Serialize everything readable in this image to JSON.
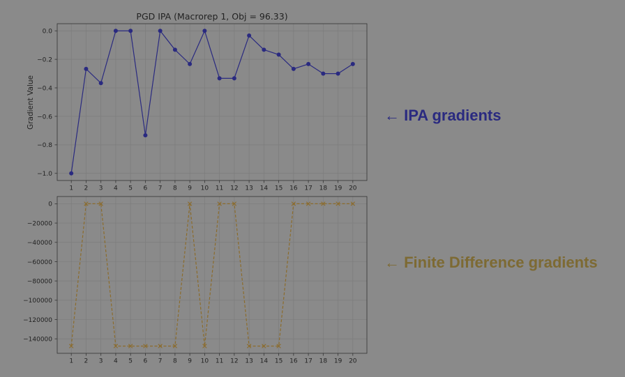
{
  "colors": {
    "background": "#8a8a8a",
    "plot_bg": "#8a8a8a",
    "grid": "#7c7c7c",
    "ipa": "#2a2a80",
    "fd": "#8c6c2c",
    "annot_ipa": "#2a2a80",
    "annot_fd": "#7d6a33"
  },
  "annotations": {
    "ipa": "← IPA gradients",
    "fd": "← Finite Difference gradients"
  },
  "chart_data": [
    {
      "type": "line",
      "title": "PGD IPA (Macrorep 1, Obj = 96.33)",
      "xlabel": "",
      "ylabel": "Gradient Value",
      "x": [
        1,
        2,
        3,
        4,
        5,
        6,
        7,
        8,
        9,
        10,
        11,
        12,
        13,
        14,
        15,
        16,
        17,
        18,
        19,
        20
      ],
      "series": [
        {
          "values": [
            -1.0,
            -0.267,
            -0.367,
            0.0,
            0.0,
            -0.733,
            0.0,
            -0.133,
            -0.233,
            0.0,
            -0.333,
            -0.333,
            -0.033,
            -0.133,
            -0.167,
            -0.267,
            -0.233,
            -0.3,
            -0.3,
            -0.233
          ],
          "marker": "circle",
          "linestyle": "solid"
        }
      ],
      "xlim": [
        0.05,
        20.95
      ],
      "ylim": [
        -1.05,
        0.05
      ],
      "xticks": [
        "1",
        "2",
        "3",
        "4",
        "5",
        "6",
        "7",
        "8",
        "9",
        "10",
        "11",
        "12",
        "13",
        "14",
        "15",
        "16",
        "17",
        "18",
        "19",
        "20"
      ],
      "yticks": [
        0.0,
        -0.2,
        -0.4,
        -0.6,
        -0.8,
        -1.0
      ],
      "ytick_labels": [
        "0.0",
        "−0.2",
        "−0.4",
        "−0.6",
        "−0.8",
        "−1.0"
      ],
      "grid": true
    },
    {
      "type": "line",
      "title": "",
      "xlabel": "",
      "ylabel": "",
      "x": [
        1,
        2,
        3,
        4,
        5,
        6,
        7,
        8,
        9,
        10,
        11,
        12,
        13,
        14,
        15,
        16,
        17,
        18,
        19,
        20
      ],
      "series": [
        {
          "values": [
            -147500,
            0,
            0,
            -147500,
            -147500,
            -147500,
            -147500,
            -147500,
            0,
            -147500,
            0,
            0,
            -147500,
            -147500,
            -147500,
            0,
            0,
            0,
            0,
            0
          ],
          "marker": "x",
          "linestyle": "dashed"
        }
      ],
      "xlim": [
        0.05,
        20.95
      ],
      "ylim": [
        -155000,
        7500
      ],
      "xticks": [
        "1",
        "2",
        "3",
        "4",
        "5",
        "6",
        "7",
        "8",
        "9",
        "10",
        "11",
        "12",
        "13",
        "14",
        "15",
        "16",
        "17",
        "18",
        "19",
        "20"
      ],
      "yticks": [
        0,
        -20000,
        -40000,
        -60000,
        -80000,
        -100000,
        -120000,
        -140000
      ],
      "ytick_labels": [
        "0",
        "−20000",
        "−40000",
        "−60000",
        "−80000",
        "−100000",
        "−120000",
        "−140000"
      ],
      "grid": true
    }
  ]
}
